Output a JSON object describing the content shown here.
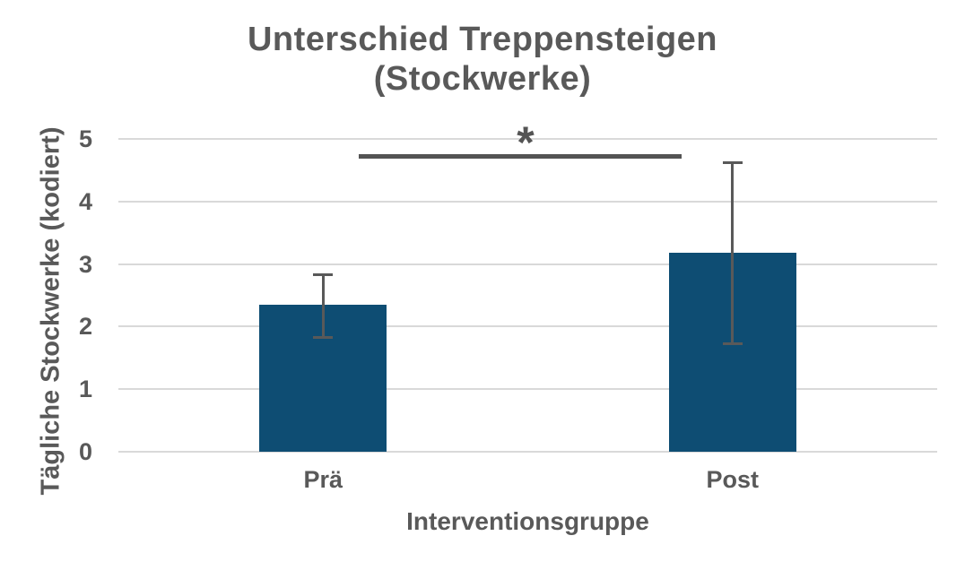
{
  "chart_data": {
    "type": "bar",
    "title": "Unterschied Treppensteigen (Stockwerke)",
    "title_line1": "Unterschied Treppensteigen",
    "title_line2": "(Stockwerke)",
    "xlabel": "Interventionsgruppe",
    "ylabel": "Tägliche Stockwerke (kodiert)",
    "categories": [
      "Prä",
      "Post"
    ],
    "values": [
      2.33,
      3.17
    ],
    "error_plus": [
      0.52,
      1.47
    ],
    "error_minus": [
      0.52,
      1.47
    ],
    "ylim": [
      0,
      5
    ],
    "yticks": [
      5,
      4,
      3,
      2,
      1,
      0
    ],
    "grid": true,
    "legend": "none",
    "significance": {
      "label": "*",
      "between": [
        "Prä",
        "Post"
      ]
    },
    "colors": {
      "bar": "#0e4d73",
      "text": "#595959",
      "gridline": "#d9d9d9",
      "error_bar": "#595959",
      "significance": "#545454",
      "background": "#ffffff"
    }
  }
}
